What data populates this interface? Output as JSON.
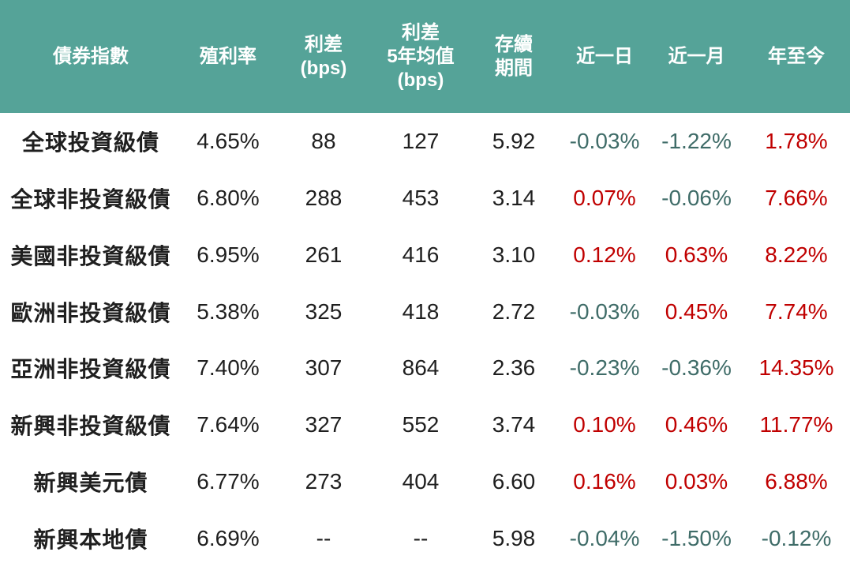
{
  "chart_data": {
    "type": "table",
    "title": "",
    "columns": [
      {
        "id": "index_name",
        "label": "債券指數"
      },
      {
        "id": "yield",
        "label": "殖利率"
      },
      {
        "id": "spread_bps",
        "label": "利差\n(bps)"
      },
      {
        "id": "spread_5y_avg_bps",
        "label": "利差\n5年均值\n(bps)"
      },
      {
        "id": "duration",
        "label": "存續\n期間"
      },
      {
        "id": "chg_1d",
        "label": "近一日"
      },
      {
        "id": "chg_1m",
        "label": "近一月"
      },
      {
        "id": "ytd",
        "label": "年至今"
      }
    ],
    "rows": [
      {
        "index_name": "全球投資級債",
        "yield": "4.65%",
        "spread_bps": "88",
        "spread_5y_avg_bps": "127",
        "duration": "5.92",
        "chg_1d": {
          "text": "-0.03%",
          "color": "teal"
        },
        "chg_1m": {
          "text": "-1.22%",
          "color": "teal"
        },
        "ytd": {
          "text": "1.78%",
          "color": "red"
        }
      },
      {
        "index_name": "全球非投資級債",
        "yield": "6.80%",
        "spread_bps": "288",
        "spread_5y_avg_bps": "453",
        "duration": "3.14",
        "chg_1d": {
          "text": "0.07%",
          "color": "red"
        },
        "chg_1m": {
          "text": "-0.06%",
          "color": "teal"
        },
        "ytd": {
          "text": "7.66%",
          "color": "red"
        }
      },
      {
        "index_name": "美國非投資級債",
        "yield": "6.95%",
        "spread_bps": "261",
        "spread_5y_avg_bps": "416",
        "duration": "3.10",
        "chg_1d": {
          "text": "0.12%",
          "color": "red"
        },
        "chg_1m": {
          "text": "0.63%",
          "color": "red"
        },
        "ytd": {
          "text": "8.22%",
          "color": "red"
        }
      },
      {
        "index_name": "歐洲非投資級債",
        "yield": "5.38%",
        "spread_bps": "325",
        "spread_5y_avg_bps": "418",
        "duration": "2.72",
        "chg_1d": {
          "text": "-0.03%",
          "color": "teal"
        },
        "chg_1m": {
          "text": "0.45%",
          "color": "red"
        },
        "ytd": {
          "text": "7.74%",
          "color": "red"
        }
      },
      {
        "index_name": "亞洲非投資級債",
        "yield": "7.40%",
        "spread_bps": "307",
        "spread_5y_avg_bps": "864",
        "duration": "2.36",
        "chg_1d": {
          "text": "-0.23%",
          "color": "teal"
        },
        "chg_1m": {
          "text": "-0.36%",
          "color": "teal"
        },
        "ytd": {
          "text": "14.35%",
          "color": "red"
        }
      },
      {
        "index_name": "新興非投資級債",
        "yield": "7.64%",
        "spread_bps": "327",
        "spread_5y_avg_bps": "552",
        "duration": "3.74",
        "chg_1d": {
          "text": "0.10%",
          "color": "red"
        },
        "chg_1m": {
          "text": "0.46%",
          "color": "red"
        },
        "ytd": {
          "text": "11.77%",
          "color": "red"
        }
      },
      {
        "index_name": "新興美元債",
        "yield": "6.77%",
        "spread_bps": "273",
        "spread_5y_avg_bps": "404",
        "duration": "6.60",
        "chg_1d": {
          "text": "0.16%",
          "color": "red"
        },
        "chg_1m": {
          "text": "0.03%",
          "color": "red"
        },
        "ytd": {
          "text": "6.88%",
          "color": "red"
        }
      },
      {
        "index_name": "新興本地債",
        "yield": "6.69%",
        "spread_bps": "--",
        "spread_5y_avg_bps": "--",
        "duration": "5.98",
        "chg_1d": {
          "text": "-0.04%",
          "color": "teal"
        },
        "chg_1m": {
          "text": "-1.50%",
          "color": "teal"
        },
        "ytd": {
          "text": "-0.12%",
          "color": "teal"
        }
      }
    ]
  },
  "colors": {
    "header_bg": "#55A398",
    "header_text": "#FFFFFF",
    "body_text": "#1F1F1F",
    "negative_text": "#3F6C68",
    "positive_text": "#C00000",
    "page_bg": "#FFFFFF"
  }
}
